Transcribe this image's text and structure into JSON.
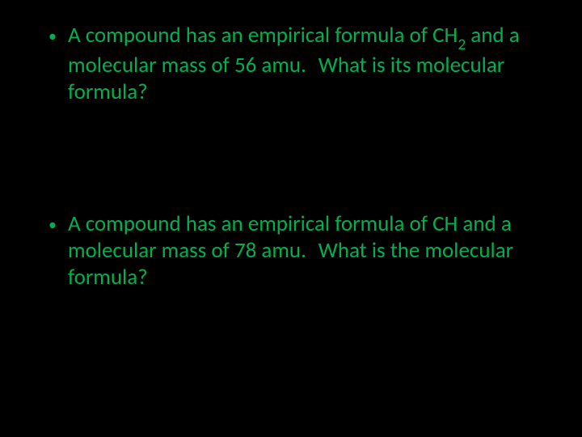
{
  "slide": {
    "background_color": "#000000",
    "text_color": "#00b050",
    "font_family": "Calibri",
    "font_size_pt": 27,
    "bullets": [
      {
        "text_before_sub": "A compound has an empirical formula of CH",
        "subscript": "2",
        "text_after_sub": " and a molecular mass of 56 amu.",
        "text_trail": "What is its molecular formula?"
      },
      {
        "text_before_sub": "A compound has an empirical formula of CH and a molecular mass of 78 amu.",
        "subscript": "",
        "text_after_sub": "",
        "text_trail": "What is the molecular formula?"
      }
    ]
  }
}
